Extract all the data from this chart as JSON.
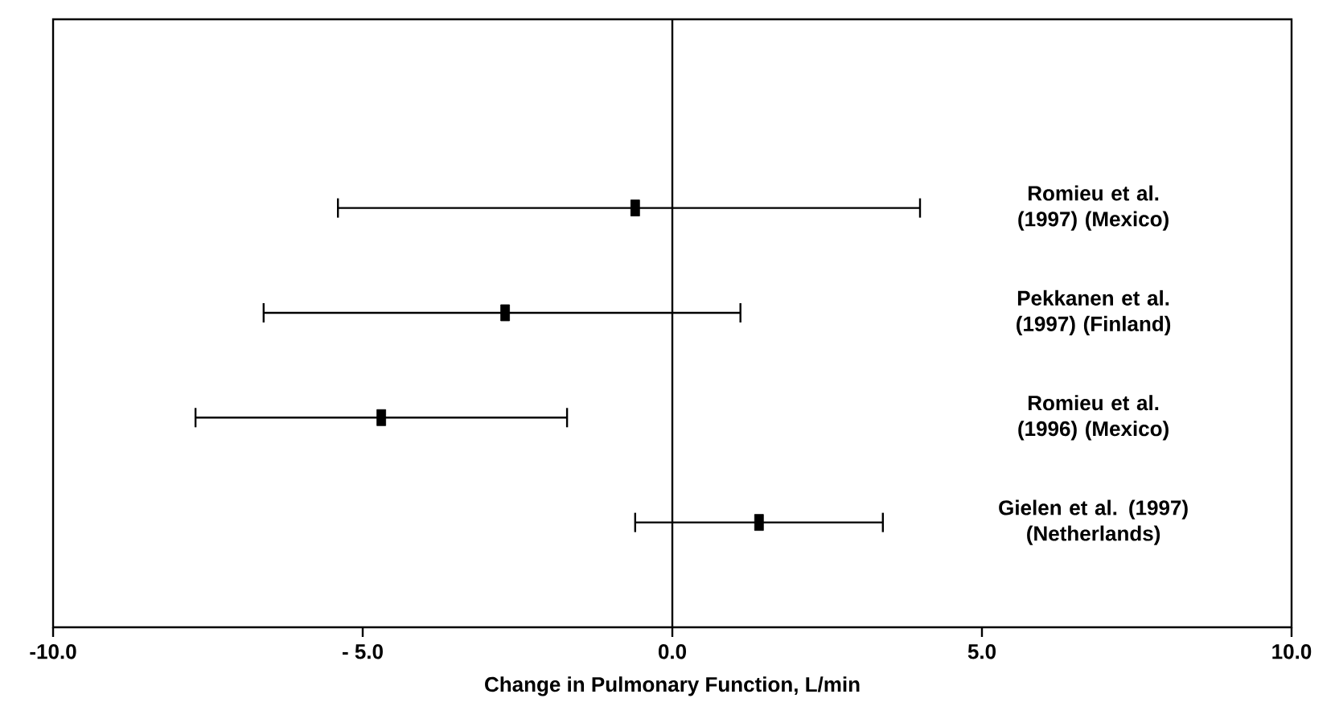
{
  "chart_data": {
    "type": "scatter",
    "orientation": "horizontal",
    "xlabel": "Change in Pulmonary Function, L/min",
    "categories": [
      "Romieu et al. (1997) (Mexico)",
      "Pekkanen et al. (1997) (Finland)",
      "Romieu et al. (1996) (Mexico)",
      "Gielen et al. (1997) (Netherlands)"
    ],
    "values": [
      -0.6,
      -2.7,
      -4.7,
      1.4
    ],
    "errors": [
      [
        -5.4,
        4.0
      ],
      [
        -6.6,
        1.1
      ],
      [
        -7.7,
        -1.7
      ],
      [
        -0.6,
        3.4
      ]
    ],
    "color": "#000000",
    "marker": "square",
    "xlim": [
      -10,
      10
    ],
    "xticks": [
      {
        "value": -10,
        "label": "-10.0"
      },
      {
        "value": -5,
        "label": "- 5.0"
      },
      {
        "value": 0,
        "label": "0.0"
      },
      {
        "value": 5,
        "label": "5.0"
      },
      {
        "value": 10,
        "label": "10.0"
      }
    ],
    "ref_lines": [
      {
        "axis": "x",
        "value": 0
      }
    ],
    "grid": false
  }
}
